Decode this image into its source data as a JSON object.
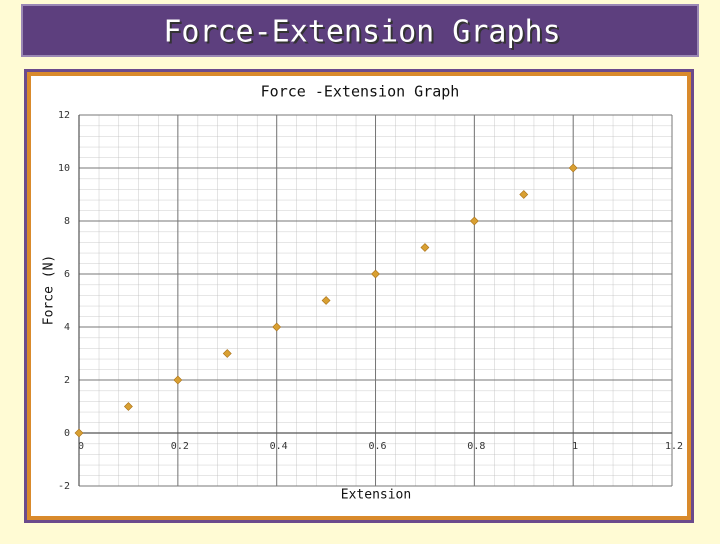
{
  "page_title": "Force-Extension Graphs",
  "chart_data": {
    "type": "scatter",
    "title": "Force -Extension Graph",
    "x_label": "Extension",
    "y_label": "Force (N)",
    "x": [
      0,
      0.1,
      0.2,
      0.3,
      0.4,
      0.5,
      0.6,
      0.7,
      0.8,
      0.9,
      1
    ],
    "values": [
      0,
      1,
      2,
      3,
      4,
      5,
      6,
      7,
      8,
      9,
      10
    ],
    "color": "#d9a032",
    "xlim": [
      0,
      1.2
    ],
    "xticks": [
      0,
      0.2,
      0.4,
      0.6,
      0.8,
      1,
      1.2
    ],
    "ylim": [
      -2,
      12
    ],
    "yticks": [
      -2,
      0,
      2,
      4,
      6,
      8,
      10,
      12
    ],
    "grid": true
  }
}
